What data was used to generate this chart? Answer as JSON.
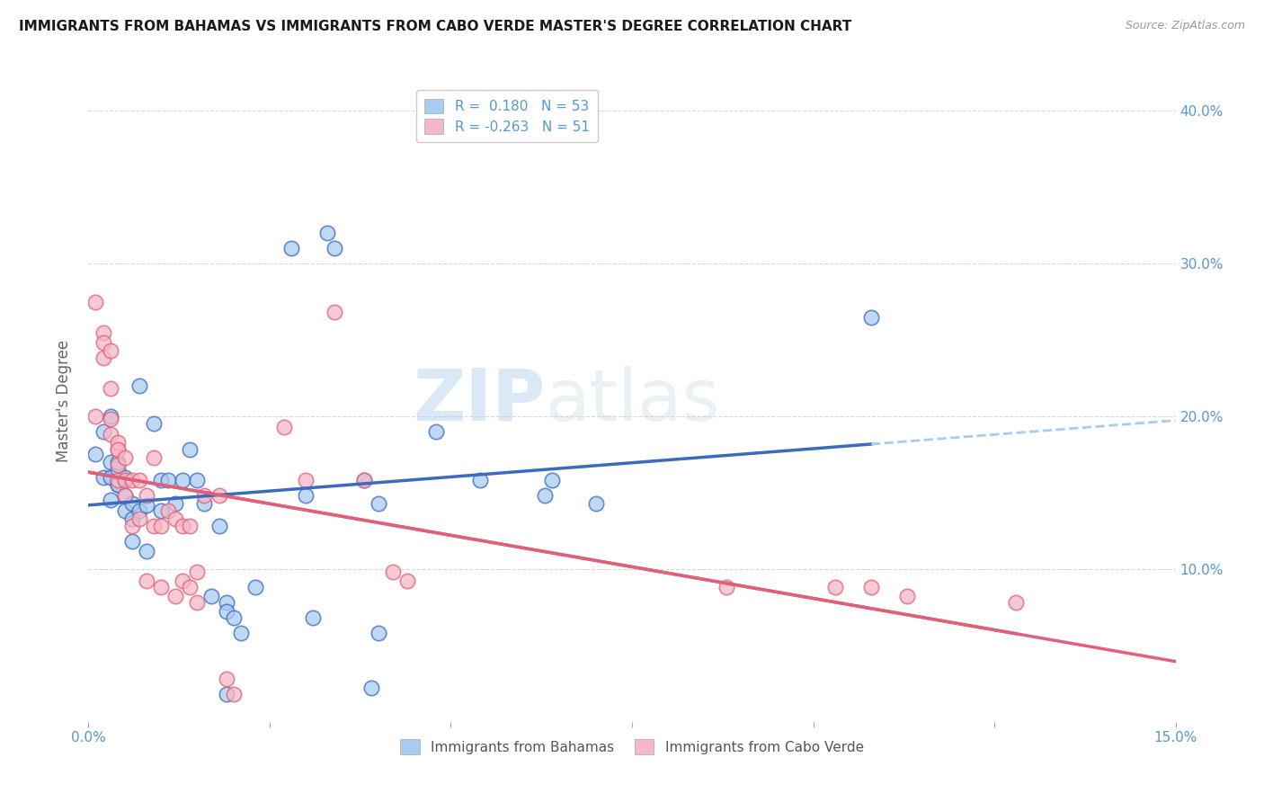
{
  "title": "IMMIGRANTS FROM BAHAMAS VS IMMIGRANTS FROM CABO VERDE MASTER'S DEGREE CORRELATION CHART",
  "source": "Source: ZipAtlas.com",
  "ylabel": "Master's Degree",
  "xlim": [
    0.0,
    0.15
  ],
  "ylim": [
    0.0,
    0.42
  ],
  "yticks": [
    0.0,
    0.1,
    0.2,
    0.3,
    0.4
  ],
  "xticks": [
    0.0,
    0.025,
    0.05,
    0.075,
    0.1,
    0.125,
    0.15
  ],
  "xtick_labels": [
    "0.0%",
    "",
    "",
    "",
    "",
    "",
    "15.0%"
  ],
  "legend_labels": [
    "Immigrants from Bahamas",
    "Immigrants from Cabo Verde"
  ],
  "color_bahamas": "#aaccf0",
  "color_caboverde": "#f4b8c8",
  "trendline_bahamas_solid": "#3b6bbf",
  "trendline_bahamas_dashed": "#a8ccee",
  "trendline_caboverde_solid": "#e0607a",
  "background_color": "#ffffff",
  "grid_color": "#d8d8d8",
  "title_color": "#1a1a1a",
  "axis_label_color": "#5599cc",
  "R_bahamas": 0.18,
  "N_bahamas": 53,
  "R_caboverde": -0.263,
  "N_caboverde": 51,
  "scatter_bahamas": [
    [
      0.001,
      0.175
    ],
    [
      0.002,
      0.19
    ],
    [
      0.002,
      0.16
    ],
    [
      0.003,
      0.2
    ],
    [
      0.003,
      0.16
    ],
    [
      0.003,
      0.145
    ],
    [
      0.003,
      0.17
    ],
    [
      0.004,
      0.155
    ],
    [
      0.004,
      0.165
    ],
    [
      0.004,
      0.155
    ],
    [
      0.004,
      0.17
    ],
    [
      0.005,
      0.148
    ],
    [
      0.005,
      0.138
    ],
    [
      0.005,
      0.16
    ],
    [
      0.006,
      0.133
    ],
    [
      0.006,
      0.143
    ],
    [
      0.006,
      0.118
    ],
    [
      0.007,
      0.22
    ],
    [
      0.007,
      0.138
    ],
    [
      0.008,
      0.142
    ],
    [
      0.008,
      0.112
    ],
    [
      0.009,
      0.195
    ],
    [
      0.01,
      0.158
    ],
    [
      0.01,
      0.138
    ],
    [
      0.011,
      0.158
    ],
    [
      0.012,
      0.143
    ],
    [
      0.013,
      0.158
    ],
    [
      0.014,
      0.178
    ],
    [
      0.015,
      0.158
    ],
    [
      0.016,
      0.143
    ],
    [
      0.017,
      0.082
    ],
    [
      0.018,
      0.128
    ],
    [
      0.019,
      0.078
    ],
    [
      0.019,
      0.072
    ],
    [
      0.02,
      0.068
    ],
    [
      0.021,
      0.058
    ],
    [
      0.023,
      0.088
    ],
    [
      0.028,
      0.31
    ],
    [
      0.03,
      0.148
    ],
    [
      0.031,
      0.068
    ],
    [
      0.033,
      0.32
    ],
    [
      0.034,
      0.31
    ],
    [
      0.038,
      0.158
    ],
    [
      0.04,
      0.143
    ],
    [
      0.04,
      0.058
    ],
    [
      0.048,
      0.19
    ],
    [
      0.054,
      0.158
    ],
    [
      0.063,
      0.148
    ],
    [
      0.064,
      0.158
    ],
    [
      0.07,
      0.143
    ],
    [
      0.108,
      0.265
    ],
    [
      0.039,
      0.022
    ],
    [
      0.019,
      0.018
    ]
  ],
  "scatter_caboverde": [
    [
      0.001,
      0.2
    ],
    [
      0.001,
      0.275
    ],
    [
      0.002,
      0.255
    ],
    [
      0.002,
      0.248
    ],
    [
      0.002,
      0.238
    ],
    [
      0.003,
      0.218
    ],
    [
      0.003,
      0.243
    ],
    [
      0.003,
      0.198
    ],
    [
      0.003,
      0.188
    ],
    [
      0.004,
      0.178
    ],
    [
      0.004,
      0.183
    ],
    [
      0.004,
      0.178
    ],
    [
      0.004,
      0.168
    ],
    [
      0.004,
      0.158
    ],
    [
      0.005,
      0.158
    ],
    [
      0.005,
      0.148
    ],
    [
      0.005,
      0.173
    ],
    [
      0.006,
      0.128
    ],
    [
      0.006,
      0.158
    ],
    [
      0.007,
      0.133
    ],
    [
      0.007,
      0.158
    ],
    [
      0.008,
      0.092
    ],
    [
      0.008,
      0.148
    ],
    [
      0.009,
      0.128
    ],
    [
      0.009,
      0.173
    ],
    [
      0.01,
      0.128
    ],
    [
      0.01,
      0.088
    ],
    [
      0.011,
      0.138
    ],
    [
      0.012,
      0.133
    ],
    [
      0.012,
      0.082
    ],
    [
      0.013,
      0.128
    ],
    [
      0.013,
      0.092
    ],
    [
      0.014,
      0.128
    ],
    [
      0.014,
      0.088
    ],
    [
      0.015,
      0.098
    ],
    [
      0.015,
      0.078
    ],
    [
      0.016,
      0.148
    ],
    [
      0.018,
      0.148
    ],
    [
      0.019,
      0.028
    ],
    [
      0.02,
      0.018
    ],
    [
      0.027,
      0.193
    ],
    [
      0.03,
      0.158
    ],
    [
      0.034,
      0.268
    ],
    [
      0.038,
      0.158
    ],
    [
      0.042,
      0.098
    ],
    [
      0.044,
      0.092
    ],
    [
      0.088,
      0.088
    ],
    [
      0.103,
      0.088
    ],
    [
      0.108,
      0.088
    ],
    [
      0.113,
      0.082
    ],
    [
      0.128,
      0.078
    ]
  ]
}
